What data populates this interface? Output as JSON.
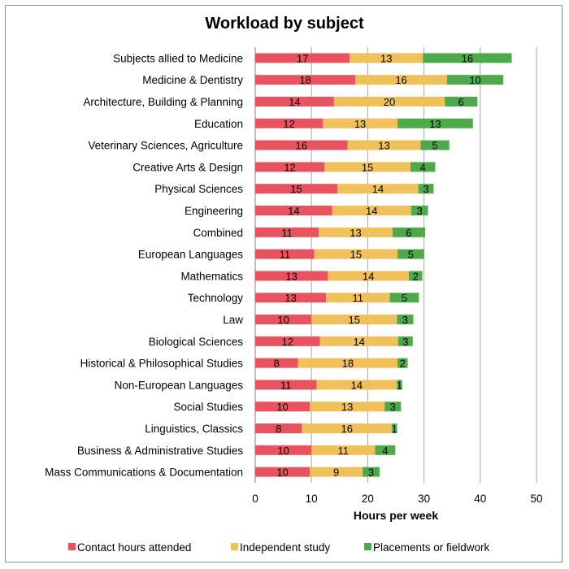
{
  "chart_data": {
    "type": "bar",
    "orientation": "horizontal",
    "stacked": true,
    "title": "Workload by subject",
    "xlabel": "Hours per week",
    "ylabel": "",
    "xlim": [
      0,
      50
    ],
    "xticks": [
      0,
      10,
      20,
      30,
      40,
      50
    ],
    "grid": true,
    "legend_position": "bottom",
    "categories": [
      "Subjects allied to Medicine",
      "Medicine & Dentistry",
      "Architecture, Building & Planning",
      "Education",
      "Veterinary Sciences, Agriculture",
      "Creative Arts & Design",
      "Physical Sciences",
      "Engineering",
      "Combined",
      "European Languages",
      "Mathematics",
      "Technology",
      "Law",
      "Biological Sciences",
      "Historical & Philosophical Studies",
      "Non-European Languages",
      "Social Studies",
      "Linguistics, Classics",
      "Business & Administrative Studies",
      "Mass Communications & Documentation"
    ],
    "series": [
      {
        "name": "Contact hours attended",
        "color": "#e8535f",
        "values": [
          16.8,
          17.8,
          14.0,
          12.0,
          16.4,
          12.3,
          14.6,
          13.7,
          11.3,
          10.5,
          12.9,
          12.6,
          10.0,
          11.5,
          7.6,
          10.9,
          9.7,
          8.3,
          10.0,
          9.7
        ],
        "labels": [
          "17",
          "18",
          "14",
          "12",
          "16",
          "12",
          "15",
          "14",
          "11",
          "11",
          "13",
          "13",
          "10",
          "12",
          "8",
          "11",
          "10",
          "8",
          "10",
          "10"
        ]
      },
      {
        "name": "Independent study",
        "color": "#f0c15a",
        "values": [
          13.0,
          16.3,
          19.7,
          13.3,
          13.0,
          15.3,
          14.4,
          14.0,
          13.1,
          14.8,
          14.4,
          11.3,
          15.2,
          13.9,
          17.7,
          14.3,
          13.3,
          16.0,
          11.3,
          9.4
        ],
        "labels": [
          "13",
          "16",
          "20",
          "13",
          "13",
          "15",
          "14",
          "14",
          "13",
          "15",
          "14",
          "11",
          "15",
          "14",
          "18",
          "14",
          "13",
          "16",
          "11",
          "9"
        ]
      },
      {
        "name": "Placements or fieldwork",
        "color": "#4ea94a",
        "values": [
          15.8,
          10.0,
          5.8,
          13.4,
          5.1,
          4.4,
          2.7,
          3.0,
          5.8,
          4.7,
          2.4,
          5.2,
          2.9,
          2.6,
          1.8,
          0.9,
          2.9,
          0.9,
          3.6,
          3.0
        ],
        "labels": [
          "16",
          "10",
          "6",
          "13",
          "5",
          "4",
          "3",
          "3",
          "6",
          "5",
          "2",
          "5",
          "3",
          "3",
          "2",
          "1",
          "3",
          "1",
          "4",
          "3"
        ]
      }
    ]
  }
}
